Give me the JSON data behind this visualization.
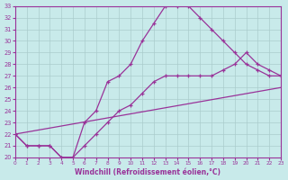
{
  "xlabel": "Windchill (Refroidissement éolien,°C)",
  "xlim": [
    0,
    23
  ],
  "ylim": [
    20,
    33
  ],
  "xticks": [
    0,
    1,
    2,
    3,
    4,
    5,
    6,
    7,
    8,
    9,
    10,
    11,
    12,
    13,
    14,
    15,
    16,
    17,
    18,
    19,
    20,
    21,
    22,
    23
  ],
  "yticks": [
    20,
    21,
    22,
    23,
    24,
    25,
    26,
    27,
    28,
    29,
    30,
    31,
    32,
    33
  ],
  "bg_color": "#c8eaea",
  "grid_color": "#aacccc",
  "line_color": "#993399",
  "line1_x": [
    0,
    1,
    2,
    3,
    4,
    5,
    6,
    7,
    8,
    9,
    10,
    11,
    12,
    13,
    14,
    15,
    16,
    17,
    18,
    19,
    20,
    21,
    22,
    23
  ],
  "line1_y": [
    22,
    21,
    21,
    21,
    20,
    20,
    23,
    24,
    26.5,
    27,
    28,
    30,
    31.5,
    33,
    33,
    33,
    32,
    31,
    30,
    29,
    28,
    27.5,
    27,
    27
  ],
  "line2_x": [
    0,
    1,
    2,
    3,
    4,
    5,
    6,
    7,
    8,
    9,
    10,
    11,
    12,
    13,
    14,
    15,
    16,
    17,
    18,
    19,
    20,
    21,
    22,
    23
  ],
  "line2_y": [
    22,
    21,
    21,
    21,
    20,
    20,
    21,
    22,
    23,
    24,
    24.5,
    25.5,
    26.5,
    27,
    27,
    27,
    27,
    27,
    27.5,
    28,
    29,
    28,
    27.5,
    27
  ],
  "line3_x": [
    0,
    23
  ],
  "line3_y": [
    22,
    26
  ]
}
